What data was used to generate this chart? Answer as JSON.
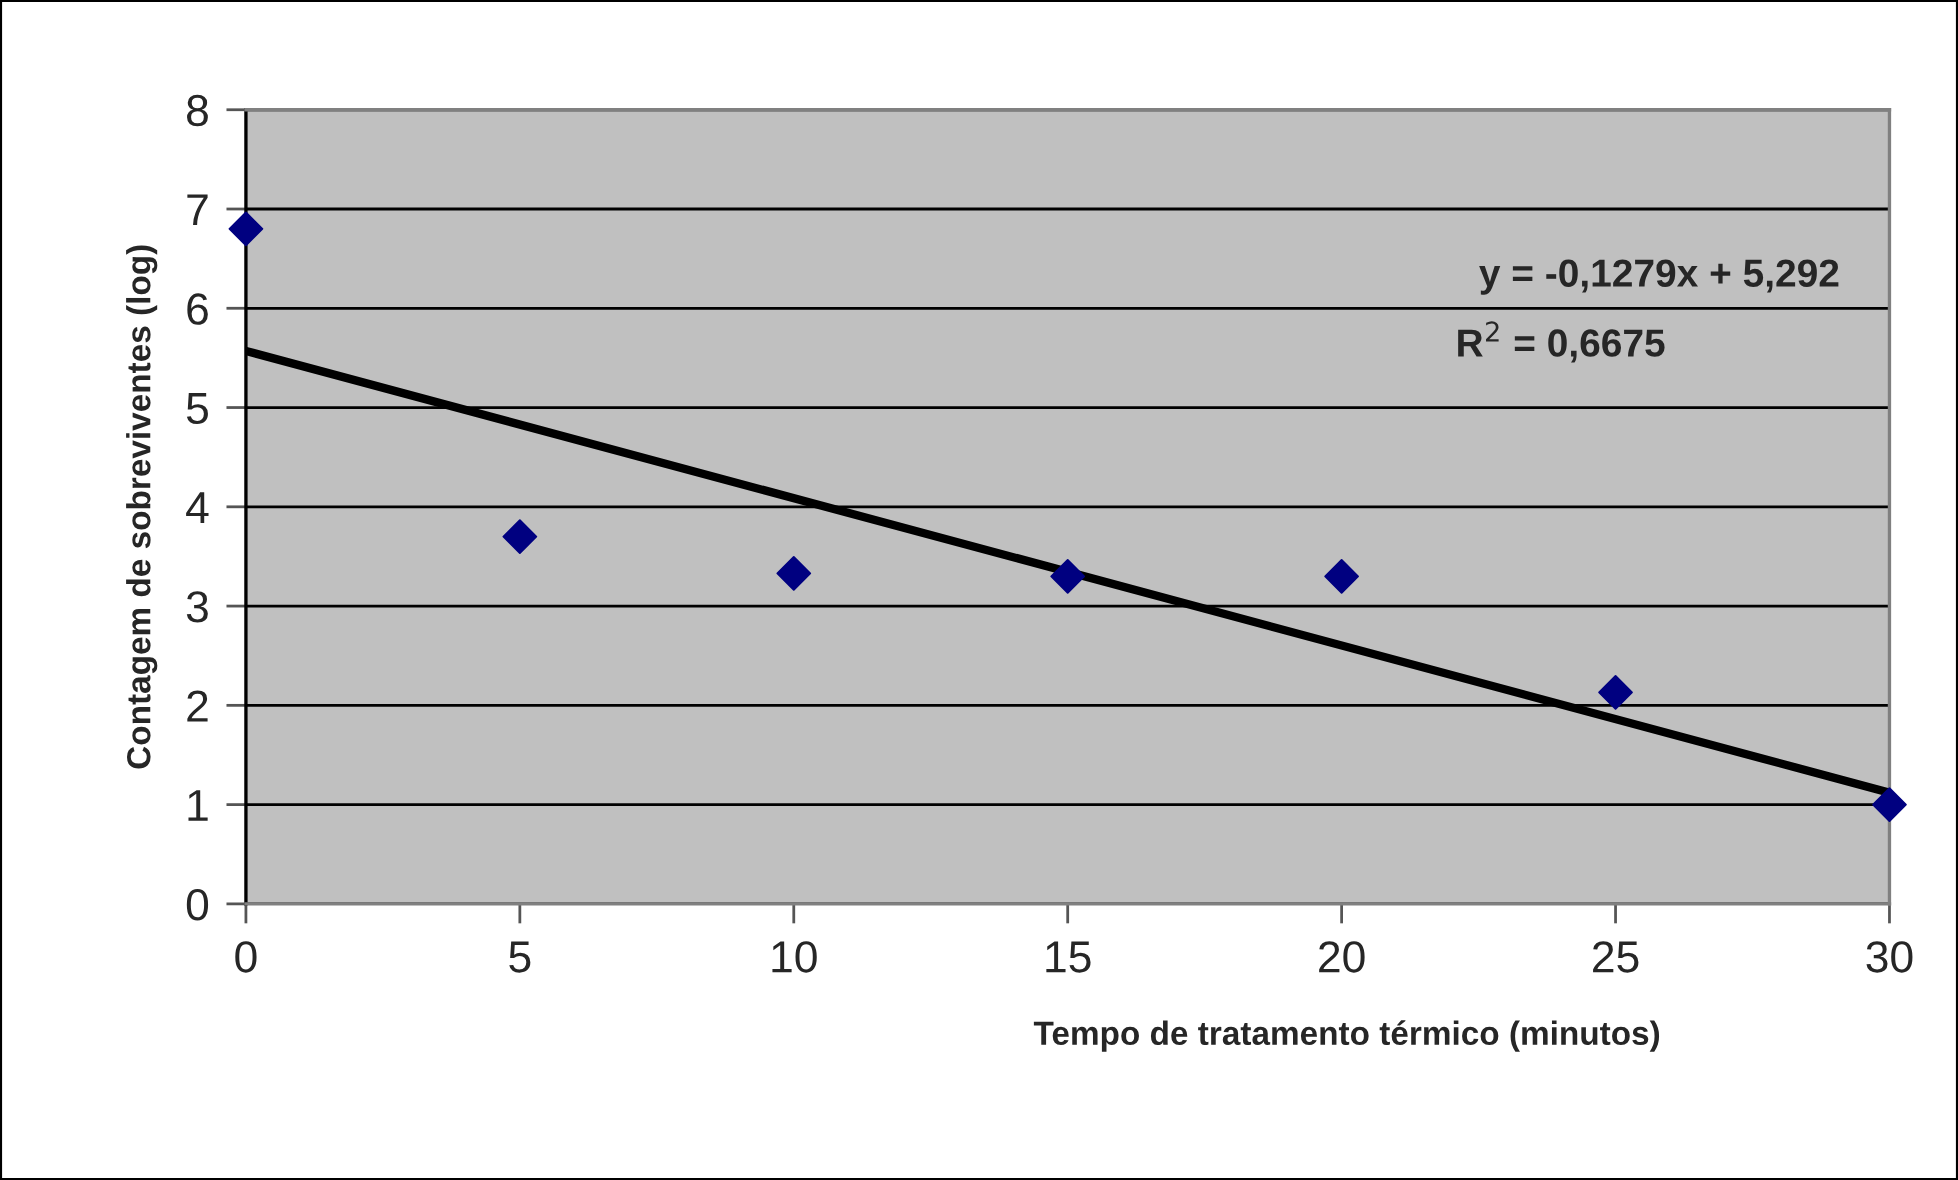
{
  "chart_data": {
    "type": "scatter",
    "xlabel": "Tempo de tratamento térmico (minutos)",
    "ylabel": "Contagem de sobreviventes (log)",
    "series": [
      {
        "color": "#000080",
        "marker": "diamond",
        "x": [
          0,
          5,
          10,
          15,
          20,
          25,
          30
        ],
        "values": [
          6.8,
          3.7,
          3.33,
          3.3,
          3.3,
          2.13,
          1.0
        ]
      },
      {
        "type": "line",
        "color": "#000000",
        "line_style": "solid",
        "x": [
          0,
          30
        ],
        "values": [
          5.57,
          1.12
        ]
      }
    ],
    "annotations": [
      "y = -0,1279x + 5,292",
      "R$^{2}$ = 0,6675"
    ],
    "xlim": [
      0,
      30
    ],
    "xticks": [
      0,
      5,
      10,
      15,
      20,
      25,
      30
    ],
    "ylim": [
      0,
      8
    ],
    "yticks": [
      0,
      1,
      2,
      3,
      4,
      5,
      6,
      7,
      8
    ],
    "grid": "y",
    "legend": false
  }
}
